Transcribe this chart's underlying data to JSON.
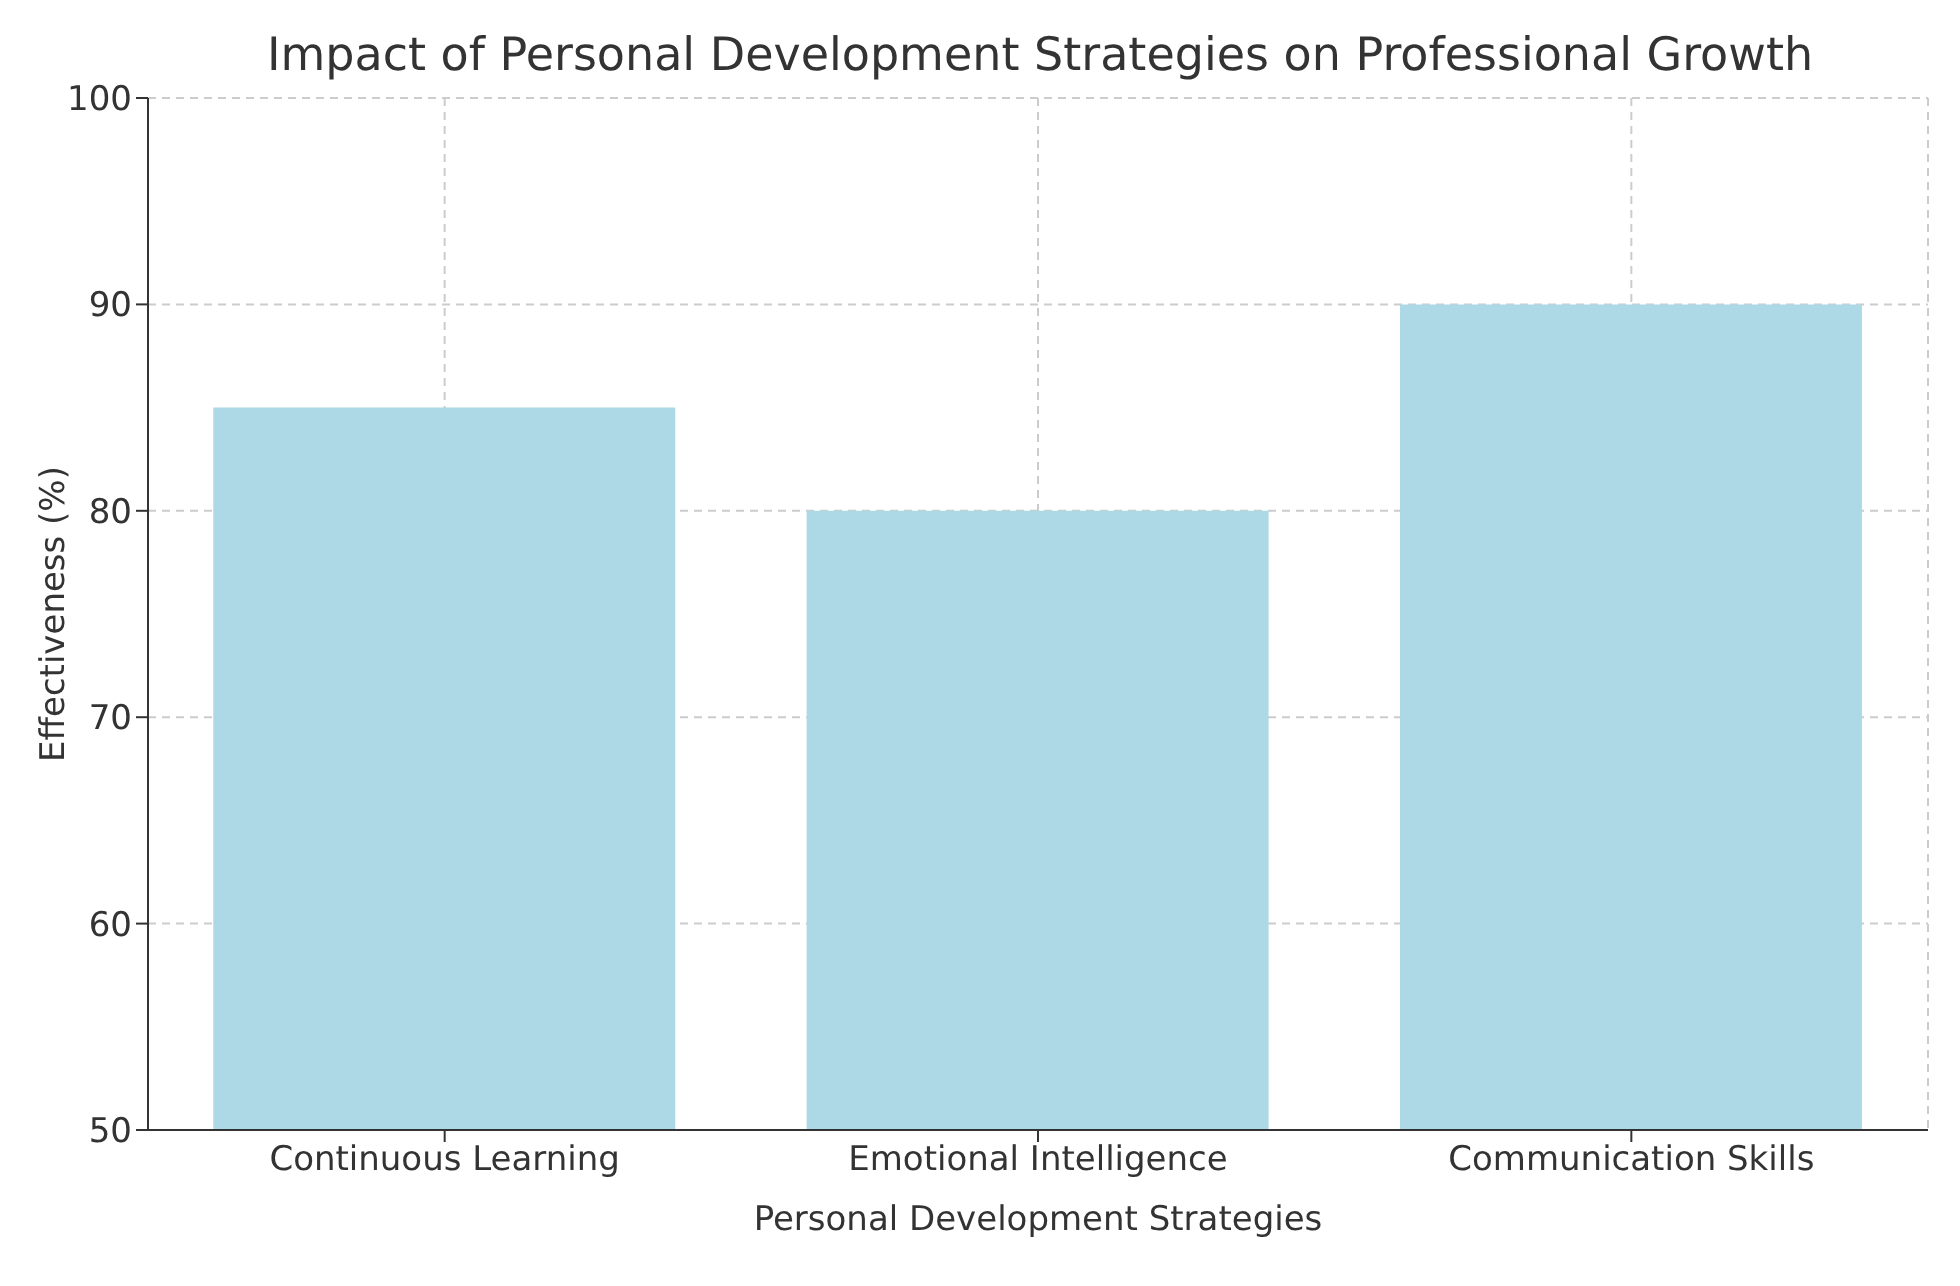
{
  "chart_data": {
    "type": "bar",
    "title": "Impact of Personal Development Strategies on Professional Growth",
    "xlabel": "Personal Development Strategies",
    "ylabel": "Effectiveness (%)",
    "categories": [
      "Continuous Learning",
      "Emotional Intelligence",
      "Communication Skills"
    ],
    "values": [
      85,
      80,
      90
    ],
    "color": "#add8e6",
    "ylim": [
      50,
      100
    ],
    "yticks": [
      50,
      60,
      70,
      80,
      90,
      100
    ],
    "grid": true
  }
}
